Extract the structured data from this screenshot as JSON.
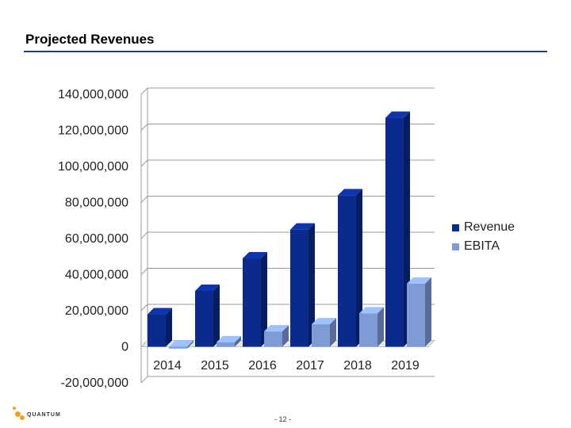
{
  "slide": {
    "title": "Projected Revenues",
    "page_number": "- 12 -",
    "logo_text": "QUANTUM"
  },
  "colors": {
    "revenue": "#0a2a8c",
    "ebita": "#7e9bd6",
    "title_rule": "#1d3c78",
    "logo_accent": "#f0a21e"
  },
  "chart_data": {
    "type": "bar",
    "categories": [
      "2014",
      "2015",
      "2016",
      "2017",
      "2018",
      "2019"
    ],
    "series": [
      {
        "name": "Revenue",
        "values": [
          18000000,
          31000000,
          49000000,
          65000000,
          84000000,
          127000000
        ]
      },
      {
        "name": "EBITA",
        "values": [
          -1000000,
          2500000,
          8500000,
          12500000,
          18500000,
          35000000
        ]
      }
    ],
    "y_ticks": [
      "140,000,000",
      "120,000,000",
      "100,000,000",
      "80,000,000",
      "60,000,000",
      "40,000,000",
      "20,000,000",
      "0",
      "-20,000,000"
    ],
    "ylim": [
      -20000000,
      140000000
    ],
    "grid": true,
    "legend_position": "right"
  }
}
